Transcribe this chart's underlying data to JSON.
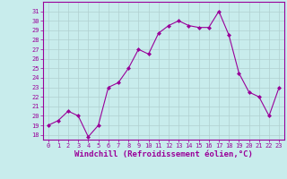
{
  "x": [
    0,
    1,
    2,
    3,
    4,
    5,
    6,
    7,
    8,
    9,
    10,
    11,
    12,
    13,
    14,
    15,
    16,
    17,
    18,
    19,
    20,
    21,
    22,
    23
  ],
  "y": [
    19,
    19.5,
    20.5,
    20,
    17.8,
    19,
    23,
    23.5,
    25,
    27,
    26.5,
    28.7,
    29.5,
    30,
    29.5,
    29.3,
    29.3,
    31,
    28.5,
    24.5,
    22.5,
    22,
    20,
    23
  ],
  "line_color": "#990099",
  "marker": "D",
  "marker_size": 2.0,
  "bg_color": "#c8ecec",
  "grid_color": "#b0d0d0",
  "xlabel": "Windchill (Refroidissement éolien,°C)",
  "xlabel_fontsize": 6.5,
  "ylim": [
    17.5,
    32
  ],
  "xlim": [
    -0.5,
    23.5
  ],
  "yticks": [
    18,
    19,
    20,
    21,
    22,
    23,
    24,
    25,
    26,
    27,
    28,
    29,
    30,
    31
  ],
  "xticks": [
    0,
    1,
    2,
    3,
    4,
    5,
    6,
    7,
    8,
    9,
    10,
    11,
    12,
    13,
    14,
    15,
    16,
    17,
    18,
    19,
    20,
    21,
    22,
    23
  ],
  "tick_color": "#990099",
  "tick_fontsize": 5.0,
  "axis_color": "#990099",
  "spine_color": "#990099"
}
